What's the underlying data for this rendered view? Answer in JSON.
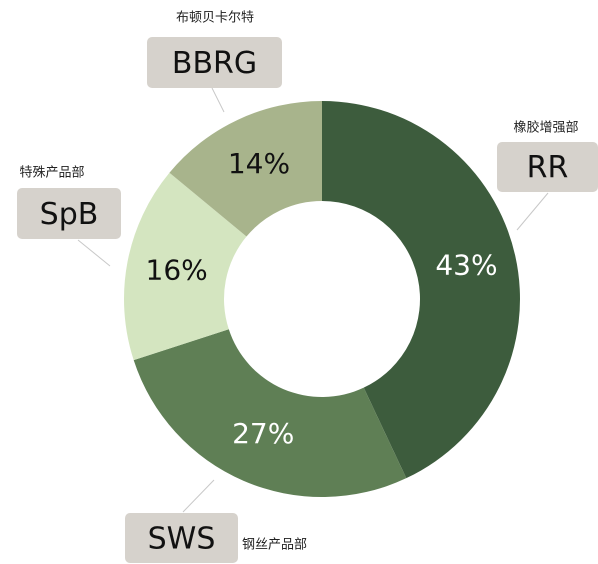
{
  "chart_data": {
    "type": "donut",
    "categories": [
      "RR",
      "SWS",
      "SpB",
      "BBRG"
    ],
    "category_descriptions": [
      "橡胶增强部",
      "钢丝产品部",
      "特殊产品部",
      "布顿贝卡尔特"
    ],
    "values": [
      43,
      27,
      16,
      14
    ],
    "value_labels": [
      "43%",
      "27%",
      "16%",
      "14%"
    ],
    "colors": [
      "#3d5c3d",
      "#5f7f55",
      "#d4e5c0",
      "#a8b48c"
    ],
    "value_label_colors": [
      "#ffffff",
      "#ffffff",
      "#111111",
      "#111111"
    ]
  }
}
